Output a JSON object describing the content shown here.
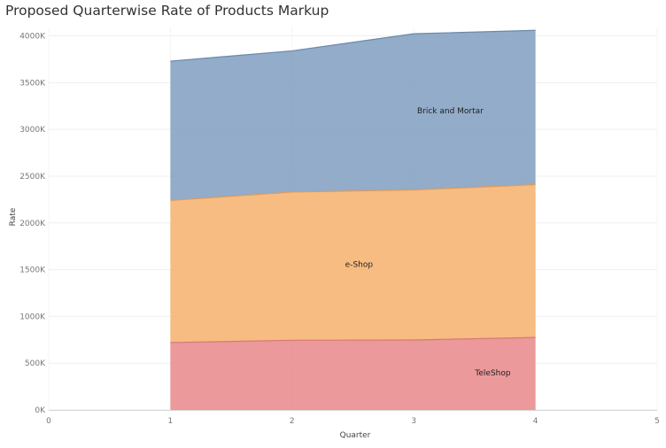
{
  "chart_data": {
    "type": "area",
    "stacked": true,
    "title": "Proposed Quarterwise Rate of Products Markup",
    "xlabel": "Quarter",
    "ylabel": "Rate",
    "x": [
      1,
      2,
      3,
      4
    ],
    "xlim": [
      0,
      5
    ],
    "ylim": [
      0,
      4100000
    ],
    "x_ticks": [
      {
        "value": 0,
        "label": "0"
      },
      {
        "value": 1,
        "label": "1"
      },
      {
        "value": 2,
        "label": "2"
      },
      {
        "value": 3,
        "label": "3"
      },
      {
        "value": 4,
        "label": "4"
      },
      {
        "value": 5,
        "label": "5"
      }
    ],
    "y_ticks": [
      {
        "value": 0,
        "label": "0K"
      },
      {
        "value": 500000,
        "label": "500K"
      },
      {
        "value": 1000000,
        "label": "1000K"
      },
      {
        "value": 1500000,
        "label": "1500K"
      },
      {
        "value": 2000000,
        "label": "2000K"
      },
      {
        "value": 2500000,
        "label": "2500K"
      },
      {
        "value": 3000000,
        "label": "3000K"
      },
      {
        "value": 3500000,
        "label": "3500K"
      },
      {
        "value": 4000000,
        "label": "4000K"
      }
    ],
    "grid": true,
    "series": [
      {
        "name": "TeleShop",
        "values": [
          720000,
          745000,
          748000,
          775000
        ],
        "color": "#e8878a",
        "label_at": {
          "x": 3.65,
          "y": 370000
        }
      },
      {
        "name": "e-Shop",
        "values": [
          1520000,
          1585000,
          1605000,
          1635000
        ],
        "color": "#f4b06b",
        "label_at": {
          "x": 2.55,
          "y": 1530000
        }
      },
      {
        "name": "Brick and Mortar",
        "values": [
          1490000,
          1510000,
          1670000,
          1650000
        ],
        "color": "#7f9ec0",
        "label_at": {
          "x": 3.3,
          "y": 3170000
        }
      }
    ]
  }
}
